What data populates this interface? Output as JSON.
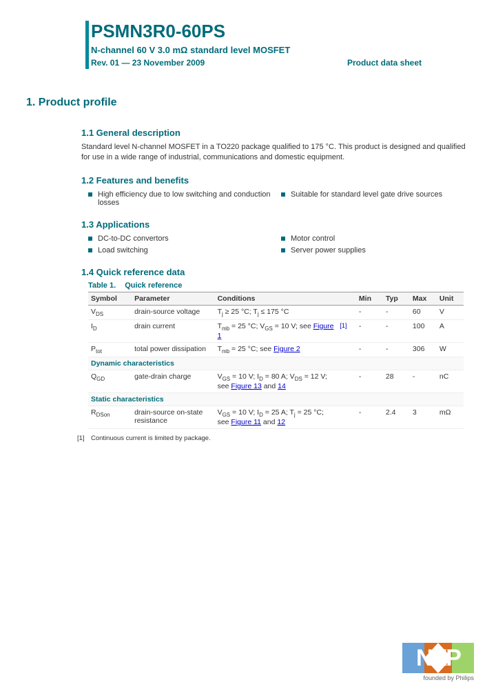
{
  "header": {
    "part_number": "PSMN3R0-60PS",
    "subtitle": "N-channel 60 V 3.0 mΩ standard level MOSFET",
    "revision": "Rev. 01 — 23 November 2009",
    "doc_type": "Product data sheet"
  },
  "section1": {
    "number_title": "1.   Product profile",
    "s11": {
      "title": "1.1   General description",
      "text": "Standard level N-channel MOSFET in a TO220 package qualified to 175 °C. This product is designed and qualified for use in a wide range of industrial, communications and domestic equipment."
    },
    "s12": {
      "title": "1.2   Features and benefits",
      "left": [
        "High efficiency due to low switching and conduction losses"
      ],
      "right": [
        "Suitable for standard level gate drive sources"
      ]
    },
    "s13": {
      "title": "1.3   Applications",
      "left": [
        "DC-to-DC convertors",
        "Load switching"
      ],
      "right": [
        "Motor control",
        "Server power supplies"
      ]
    },
    "s14": {
      "title": "1.4   Quick reference data",
      "caption_label": "Table 1.",
      "caption_title": "Quick reference",
      "columns": [
        "Symbol",
        "Parameter",
        "Conditions",
        "",
        "Min",
        "Typ",
        "Max",
        "Unit"
      ],
      "rows": [
        {
          "sym_html": "V<sub>DS</sub>",
          "param": "drain-source voltage",
          "cond_html": "T<sub>j</sub> ≥ 25 °C; T<sub>j</sub> ≤ 175 °C",
          "ref": "",
          "min": "-",
          "typ": "-",
          "max": "60",
          "unit": "V"
        },
        {
          "sym_html": "I<sub>D</sub>",
          "param": "drain current",
          "cond_html": "T<sub>mb</sub> = 25 °C; V<sub>GS</sub> = 10 V; see <span class=\"fig-link\">Figure 1</span>",
          "ref": "[1]",
          "min": "-",
          "typ": "-",
          "max": "100",
          "unit": "A"
        },
        {
          "sym_html": "P<sub>tot</sub>",
          "param": "total power dissipation",
          "cond_html": "T<sub>mb</sub> = 25 °C; see <span class=\"fig-link\">Figure 2</span>",
          "ref": "",
          "min": "-",
          "typ": "-",
          "max": "306",
          "unit": "W"
        }
      ],
      "sub_dynamic": "Dynamic characteristics",
      "rows_dynamic": [
        {
          "sym_html": "Q<sub>GD</sub>",
          "param": "gate-drain charge",
          "cond_html": "V<sub>GS</sub> = 10 V; I<sub>D</sub> = 80 A; V<sub>DS</sub> = 12 V; see <span class=\"fig-link\">Figure 13</span> and <span class=\"fig-link\">14</span>",
          "ref": "",
          "min": "-",
          "typ": "28",
          "max": "-",
          "unit": "nC"
        }
      ],
      "sub_static": "Static characteristics",
      "rows_static": [
        {
          "sym_html": "R<sub>DSon</sub>",
          "param": "drain-source on-state resistance",
          "cond_html": "V<sub>GS</sub> = 10 V; I<sub>D</sub> = 25 A; T<sub>j</sub> = 25 °C; see <span class=\"fig-link\">Figure 11</span> and <span class=\"fig-link\">12</span>",
          "ref": "",
          "min": "-",
          "typ": "2.4",
          "max": "3",
          "unit": "mΩ"
        }
      ],
      "footnote": "Continuous current is limited by package."
    }
  },
  "footer": {
    "founded": "founded by Philips"
  },
  "colors": {
    "teal": "#006b7a",
    "link": "#0000cc"
  }
}
